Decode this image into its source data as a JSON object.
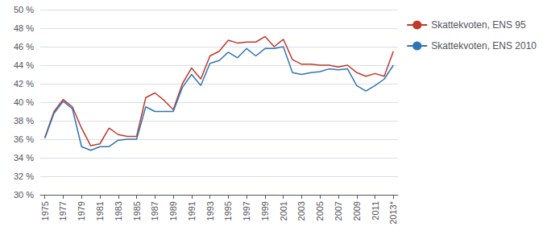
{
  "chart_data": {
    "type": "line",
    "x": [
      1975,
      1976,
      1977,
      1978,
      1979,
      1980,
      1981,
      1982,
      1983,
      1984,
      1985,
      1986,
      1987,
      1988,
      1989,
      1990,
      1991,
      1992,
      1993,
      1994,
      1995,
      1996,
      1997,
      1998,
      1999,
      2000,
      2001,
      2002,
      2003,
      2004,
      2005,
      2006,
      2007,
      2008,
      2009,
      2010,
      2011,
      2012,
      2013
    ],
    "series": [
      {
        "name": "Skattekvoten, ENS 95",
        "color": "#C0392B",
        "values": [
          36.2,
          39.0,
          40.3,
          39.5,
          37.2,
          35.3,
          35.5,
          37.2,
          36.5,
          36.3,
          36.3,
          40.5,
          41.0,
          40.2,
          39.2,
          42.0,
          43.7,
          42.5,
          45.0,
          45.5,
          46.7,
          46.4,
          46.5,
          46.5,
          47.1,
          46.0,
          46.8,
          44.6,
          44.1,
          44.1,
          44.0,
          44.0,
          43.8,
          44.0,
          43.2,
          42.8,
          43.1,
          42.8,
          45.5
        ]
      },
      {
        "name": "Skattekvoten, ENS 2010",
        "color": "#2E75B6",
        "values": [
          36.1,
          38.8,
          40.1,
          39.3,
          35.2,
          34.8,
          35.2,
          35.2,
          35.9,
          36.0,
          36.0,
          39.5,
          39.0,
          39.0,
          39.0,
          41.6,
          43.0,
          41.8,
          44.2,
          44.5,
          45.4,
          44.8,
          45.8,
          45.0,
          45.8,
          45.8,
          46.0,
          43.2,
          43.0,
          43.2,
          43.3,
          43.6,
          43.5,
          43.6,
          41.8,
          41.2,
          41.8,
          42.5,
          44.0
        ]
      }
    ],
    "xlim": [
      1974.5,
      2013.5
    ],
    "xticks": [
      1975,
      1977,
      1979,
      1981,
      1983,
      1985,
      1987,
      1989,
      1991,
      1993,
      1995,
      1997,
      1999,
      2001,
      2003,
      2005,
      2007,
      2009,
      2011,
      {
        "value": 2013,
        "label": "2013*"
      }
    ],
    "ylim": [
      30,
      50
    ],
    "yticks": [
      {
        "value": 30,
        "label": "30 %"
      },
      {
        "value": 32,
        "label": "32 %"
      },
      {
        "value": 34,
        "label": "34 %"
      },
      {
        "value": 36,
        "label": "36 %"
      },
      {
        "value": 38,
        "label": "38 %"
      },
      {
        "value": 40,
        "label": "40 %"
      },
      {
        "value": 42,
        "label": "42 %"
      },
      {
        "value": 44,
        "label": "44 %"
      },
      {
        "value": 46,
        "label": "46 %"
      },
      {
        "value": 48,
        "label": "48 %"
      },
      {
        "value": 50,
        "label": "50 %"
      }
    ],
    "grid": true,
    "legend": "right"
  }
}
